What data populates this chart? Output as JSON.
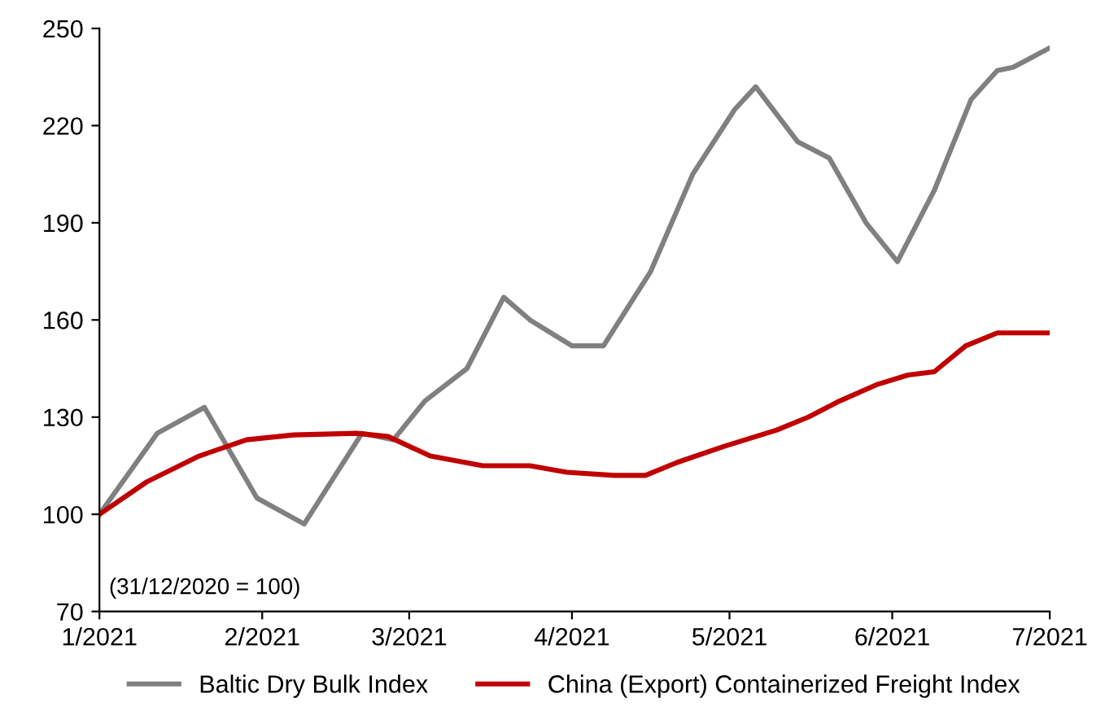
{
  "chart_data": {
    "type": "line",
    "annotations": [
      "(31/12/2020 = 100)"
    ],
    "xlim": [
      "2021-01-01",
      "2021-07-01"
    ],
    "xticks": [
      {
        "value": "2021-01-01",
        "label": "1/2021"
      },
      {
        "value": "2021-02-01",
        "label": "2/2021"
      },
      {
        "value": "2021-03-01",
        "label": "3/2021"
      },
      {
        "value": "2021-04-01",
        "label": "4/2021"
      },
      {
        "value": "2021-05-01",
        "label": "5/2021"
      },
      {
        "value": "2021-06-01",
        "label": "6/2021"
      },
      {
        "value": "2021-07-01",
        "label": "7/2021"
      }
    ],
    "ylim": [
      70,
      250
    ],
    "yticks": [
      70,
      100,
      130,
      160,
      190,
      220,
      250
    ],
    "grid": false,
    "legend": "bottom",
    "marker": "none",
    "line_style": "solid",
    "series": [
      {
        "name": "Baltic Dry Bulk Index",
        "color": "#808080",
        "x": [
          "2021-01-01",
          "2021-01-12",
          "2021-01-21",
          "2021-01-31",
          "2021-02-09",
          "2021-02-20",
          "2021-02-26",
          "2021-03-04",
          "2021-03-12",
          "2021-03-19",
          "2021-03-24",
          "2021-04-01",
          "2021-04-07",
          "2021-04-16",
          "2021-04-24",
          "2021-05-02",
          "2021-05-06",
          "2021-05-14",
          "2021-05-20",
          "2021-05-27",
          "2021-06-02",
          "2021-06-09",
          "2021-06-16",
          "2021-06-21",
          "2021-06-24",
          "2021-07-01"
        ],
        "values": [
          100,
          125,
          133,
          105,
          97,
          125,
          123,
          135,
          145,
          167,
          160,
          152,
          152,
          175,
          205,
          225,
          232,
          215,
          210,
          190,
          178,
          200,
          228,
          237,
          238,
          244
        ]
      },
      {
        "name": "China (Export) Containerized Freight Index",
        "color": "#c00000",
        "x": [
          "2021-01-01",
          "2021-01-10",
          "2021-01-20",
          "2021-01-29",
          "2021-02-07",
          "2021-02-19",
          "2021-02-25",
          "2021-03-05",
          "2021-03-15",
          "2021-03-24",
          "2021-03-31",
          "2021-04-09",
          "2021-04-15",
          "2021-04-21",
          "2021-04-30",
          "2021-05-10",
          "2021-05-16",
          "2021-05-22",
          "2021-05-29",
          "2021-06-04",
          "2021-06-09",
          "2021-06-15",
          "2021-06-21",
          "2021-07-01"
        ],
        "values": [
          100,
          110,
          118,
          123,
          124.5,
          125,
          124,
          118,
          115,
          115,
          113,
          112,
          112,
          116,
          121,
          126,
          130,
          135,
          140,
          143,
          144,
          152,
          156,
          156
        ]
      }
    ]
  }
}
